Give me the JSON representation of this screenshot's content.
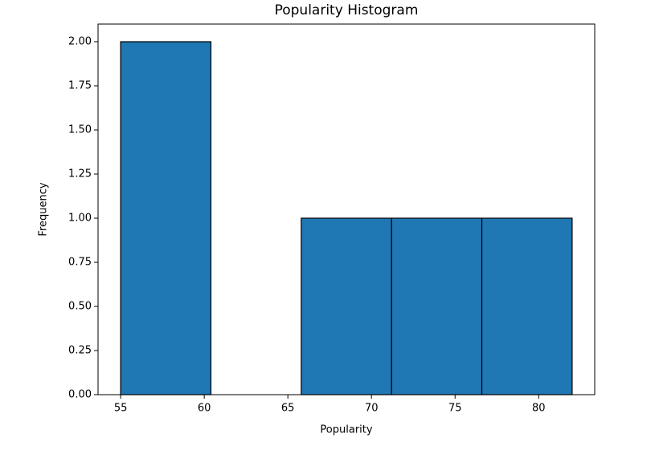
{
  "chart_data": {
    "type": "histogram",
    "title": "Popularity Histogram",
    "x_label": "Popularity",
    "y_label": "Frequency",
    "bins": [
      55,
      60.4,
      65.8,
      71.2,
      76.6,
      82
    ],
    "values": [
      2,
      0,
      1,
      1,
      1
    ],
    "color": "#1f77b4",
    "edgecolor": "#000000",
    "xlim": [
      53.65,
      83.35
    ],
    "ylim": [
      0,
      2.1
    ],
    "xticks": [
      55,
      60,
      65,
      70,
      75,
      80
    ],
    "yticks": [
      {
        "value": 0,
        "label": "0.00"
      },
      {
        "value": 0.25,
        "label": "0.25"
      },
      {
        "value": 0.5,
        "label": "0.50"
      },
      {
        "value": 0.75,
        "label": "0.75"
      },
      {
        "value": 1,
        "label": "1.00"
      },
      {
        "value": 1.25,
        "label": "1.25"
      },
      {
        "value": 1.5,
        "label": "1.50"
      },
      {
        "value": 1.75,
        "label": "1.75"
      },
      {
        "value": 2,
        "label": "2.00"
      }
    ],
    "grid": false
  }
}
